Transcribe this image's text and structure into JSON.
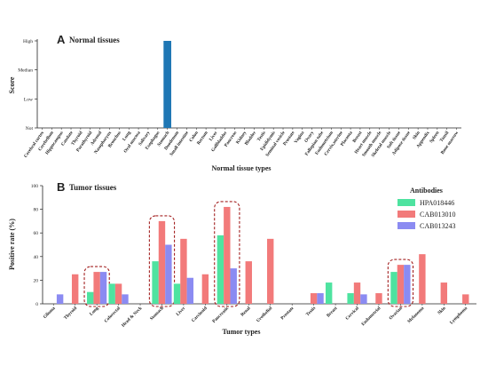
{
  "colors": {
    "normal_bar": "#1f77b4",
    "series": [
      "#4ee3a0",
      "#f27a7a",
      "#8b8bf2"
    ],
    "highlight_box": "#a32020",
    "axis": "#222222"
  },
  "chart_data": [
    {
      "type": "bar",
      "panel_letter": "A",
      "title": "Normal tissues",
      "xlabel": "Normal tissue types",
      "ylabel": "Score",
      "y_levels": [
        "Not",
        "Low",
        "Median",
        "High"
      ],
      "ylim": [
        0,
        3
      ],
      "categories": [
        "Cerebral cortex",
        "Cerebellum",
        "Hippocampus",
        "Caudate",
        "Thyroid",
        "Parathyroid",
        "Adrenal",
        "Nasopharynx",
        "Bronchus",
        "Lung",
        "Oral mucosa",
        "Salivary",
        "Esophagus",
        "Stomach",
        "Duodenum",
        "Small intestine",
        "Colon",
        "Rectum",
        "Liver",
        "Gallbladder",
        "Pancreas",
        "Kidney",
        "Bladder",
        "Testis",
        "Epididymis",
        "Seminal vesicle",
        "Prostate",
        "Vagina",
        "Ovary",
        "Fallopian tube",
        "Endometrium",
        "Cervix,uterine",
        "Placenta",
        "Breast",
        "Heart muscle",
        "Smooth muscle",
        "Skeletal muscle",
        "Soft tissue",
        "Adipose tissue",
        "Skin",
        "Appendix",
        "Spleen",
        "Tonsil",
        "Bone marrow"
      ],
      "values": [
        0,
        0,
        0,
        0,
        0,
        0,
        0,
        0,
        0,
        0,
        0,
        0,
        0,
        3,
        0,
        0,
        0,
        0,
        0,
        0,
        0,
        0,
        0,
        0,
        0,
        0,
        0,
        0,
        0,
        0,
        0,
        0,
        0,
        0,
        0,
        0,
        0,
        0,
        0,
        0,
        0,
        0,
        0,
        0
      ],
      "grid": false
    },
    {
      "type": "bar",
      "panel_letter": "B",
      "title": "Tumor tissues",
      "xlabel": "Tumor types",
      "ylabel": "Positive rate (%)",
      "ylim": [
        0,
        100
      ],
      "yticks": [
        0,
        20,
        40,
        60,
        80,
        100
      ],
      "legend_title": "Antibodies",
      "legend_position": "top-right",
      "categories": [
        "Glioma",
        "Thyroid",
        "Lung",
        "Colorectal",
        "Head & Neck",
        "Stomach",
        "Liver",
        "Carcinoid",
        "Pancreatic",
        "Renal",
        "Urothelial",
        "Prostate",
        "Testis",
        "Breast",
        "Cervical",
        "Endometrial",
        "Ovarian",
        "Melanoma",
        "Skin",
        "Lymphoma"
      ],
      "series": [
        {
          "name": "HPA018446",
          "values": [
            0,
            0,
            10,
            17,
            0,
            36,
            17,
            0,
            58,
            0,
            0,
            0,
            0,
            18,
            9,
            0,
            27,
            0,
            0,
            0
          ]
        },
        {
          "name": "CAB013010",
          "values": [
            0,
            25,
            27,
            17,
            0,
            70,
            55,
            25,
            82,
            36,
            55,
            0,
            9,
            0,
            18,
            9,
            33,
            42,
            18,
            8
          ]
        },
        {
          "name": "CAB013243",
          "values": [
            8,
            0,
            27,
            8,
            0,
            50,
            22,
            0,
            30,
            0,
            0,
            0,
            9,
            0,
            8,
            0,
            33,
            0,
            0,
            0
          ]
        }
      ],
      "highlighted_categories": [
        "Lung",
        "Stomach",
        "Pancreatic",
        "Ovarian"
      ],
      "grid": false
    }
  ]
}
